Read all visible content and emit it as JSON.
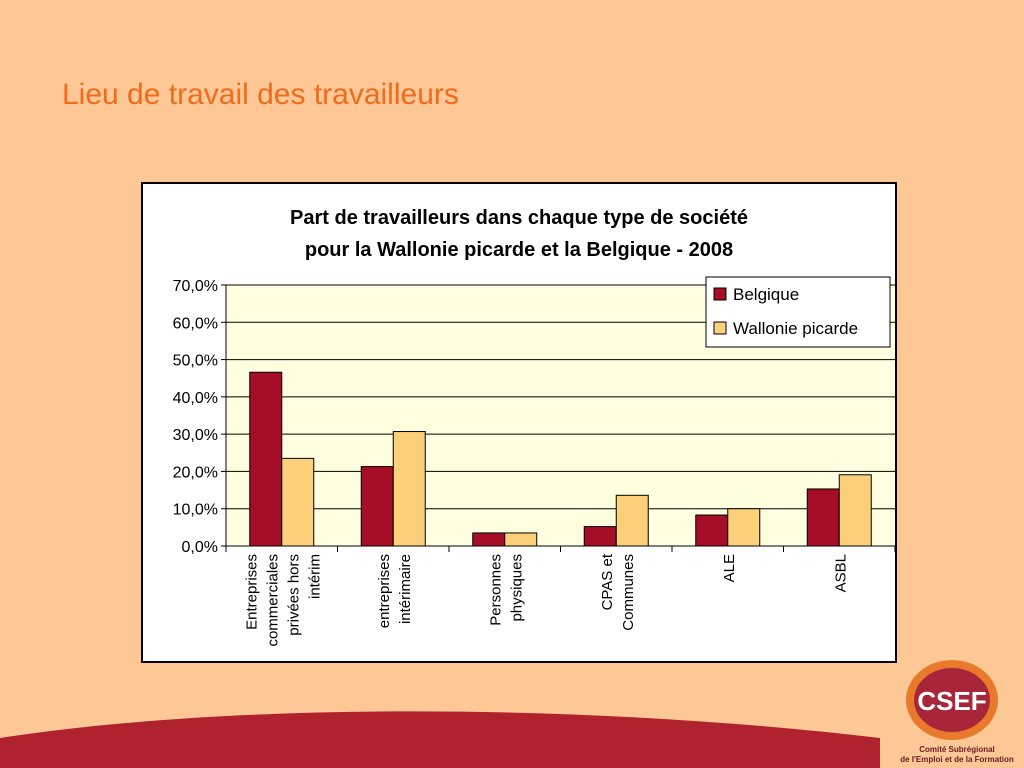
{
  "slide": {
    "title": "Lieu de travail des travailleurs"
  },
  "logo": {
    "text": "CSEF",
    "line1": "Comité Subrégional",
    "line2": "de l'Emploi et de la Formation"
  },
  "colors": {
    "background": "#fdc896",
    "title": "#f26b1d",
    "belgique": "#a50e26",
    "wallonie": "#fcd07a",
    "plot_bg": "#ffffe0",
    "band": "#b0222e"
  },
  "chart_data": {
    "type": "bar",
    "title_lines": [
      "Part de travailleurs dans chaque type de société",
      "pour la Wallonie picarde et la Belgique - 2008"
    ],
    "categories": [
      [
        "Entreprises",
        "commerciales",
        "privées hors",
        "intérim"
      ],
      [
        "entreprises",
        "intérimaire"
      ],
      [
        "Personnes",
        "physiques"
      ],
      [
        "CPAS et",
        "Communes"
      ],
      [
        "ALE"
      ],
      [
        "ASBL"
      ]
    ],
    "series": [
      {
        "name": "Belgique",
        "values": [
          46.6,
          21.3,
          3.5,
          5.2,
          8.3,
          15.3
        ]
      },
      {
        "name": "Wallonie picarde",
        "values": [
          23.5,
          30.7,
          3.5,
          13.6,
          10.0,
          19.1
        ]
      }
    ],
    "ylim": [
      0,
      70
    ],
    "yticks": [
      "0,0%",
      "10,0%",
      "20,0%",
      "30,0%",
      "40,0%",
      "50,0%",
      "60,0%",
      "70,0%"
    ],
    "legend": "top-right",
    "grid": true
  }
}
